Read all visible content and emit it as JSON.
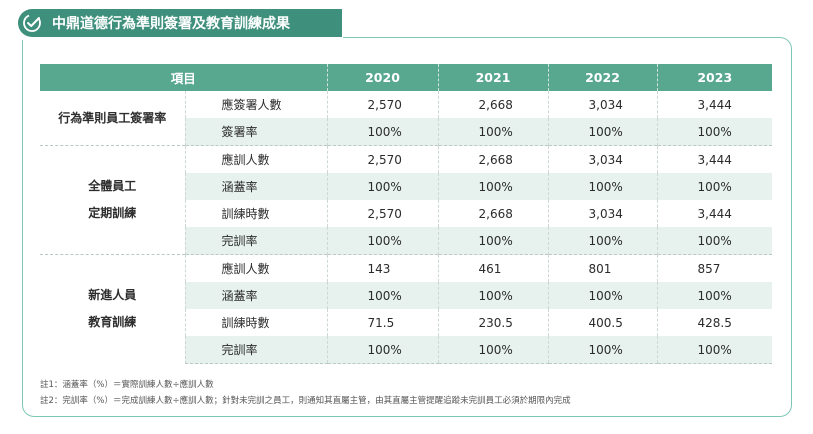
{
  "section": {
    "title": "中鼎道德行為準則簽署及教育訓練成果",
    "icon": "check-circle-icon",
    "accent_color": "#3e8f7c"
  },
  "table": {
    "headers": [
      "項目",
      "2020",
      "2021",
      "2022",
      "2023"
    ],
    "groups": [
      {
        "name_lines": [
          "行為準則員工簽署率"
        ],
        "rows": [
          {
            "label": "應簽署人數",
            "values": [
              "2,570",
              "2,668",
              "3,034",
              "3,444"
            ]
          },
          {
            "label": "簽署率",
            "values": [
              "100%",
              "100%",
              "100%",
              "100%"
            ]
          }
        ]
      },
      {
        "name_lines": [
          "全體員工",
          "定期訓練"
        ],
        "rows": [
          {
            "label": "應訓人數",
            "values": [
              "2,570",
              "2,668",
              "3,034",
              "3,444"
            ]
          },
          {
            "label": "涵蓋率",
            "values": [
              "100%",
              "100%",
              "100%",
              "100%"
            ]
          },
          {
            "label": "訓練時數",
            "values": [
              "2,570",
              "2,668",
              "3,034",
              "3,444"
            ]
          },
          {
            "label": "完訓率",
            "values": [
              "100%",
              "100%",
              "100%",
              "100%"
            ]
          }
        ]
      },
      {
        "name_lines": [
          "新進人員",
          "教育訓練"
        ],
        "rows": [
          {
            "label": "應訓人數",
            "values": [
              "143",
              "461",
              "801",
              "857"
            ]
          },
          {
            "label": "涵蓋率",
            "values": [
              "100%",
              "100%",
              "100%",
              "100%"
            ]
          },
          {
            "label": "訓練時數",
            "values": [
              "71.5",
              "230.5",
              "400.5",
              "428.5"
            ]
          },
          {
            "label": "完訓率",
            "values": [
              "100%",
              "100%",
              "100%",
              "100%"
            ]
          }
        ]
      }
    ]
  },
  "notes": [
    "註1：涵蓋率（%）＝實際訓練人數÷應訓人數",
    "註2：完訓率（%）＝完成訓練人數÷應訓人數；針對未完訓之員工，則通知其直屬主管，由其直屬主管提醒追蹤未完訓員工必須於期限內完成"
  ]
}
